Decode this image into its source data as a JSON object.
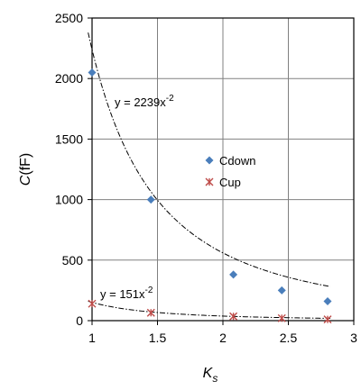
{
  "chart_data": {
    "type": "scatter",
    "title": "",
    "xlabel": "K",
    "xlabel_subscript": "s",
    "ylabel": "C",
    "ylabel_unit": "(fF)",
    "xlim": [
      1,
      3
    ],
    "ylim": [
      0,
      2500
    ],
    "xticks": [
      1,
      1.5,
      2,
      2.5,
      3
    ],
    "yticks": [
      0,
      500,
      1000,
      1500,
      2000,
      2500
    ],
    "grid": true,
    "legend_position": "center-right",
    "series": [
      {
        "name": "Cdown",
        "marker": "diamond",
        "color": "#4a7ebb",
        "x": [
          1.0,
          1.45,
          2.08,
          2.45,
          2.8
        ],
        "y": [
          2050,
          1000,
          380,
          250,
          160
        ]
      },
      {
        "name": "Cup",
        "marker": "asterisk",
        "color": "#be4b48",
        "x": [
          1.0,
          1.45,
          2.08,
          2.45,
          2.8
        ],
        "y": [
          140,
          65,
          35,
          20,
          10
        ]
      }
    ],
    "trendlines": [
      {
        "coef": 2239,
        "exponent": -2,
        "label_main": "y = 2239x",
        "label_exp": "-2"
      },
      {
        "coef": 151,
        "exponent": -2,
        "label_main": "y = 151x",
        "label_exp": "-2"
      }
    ]
  }
}
